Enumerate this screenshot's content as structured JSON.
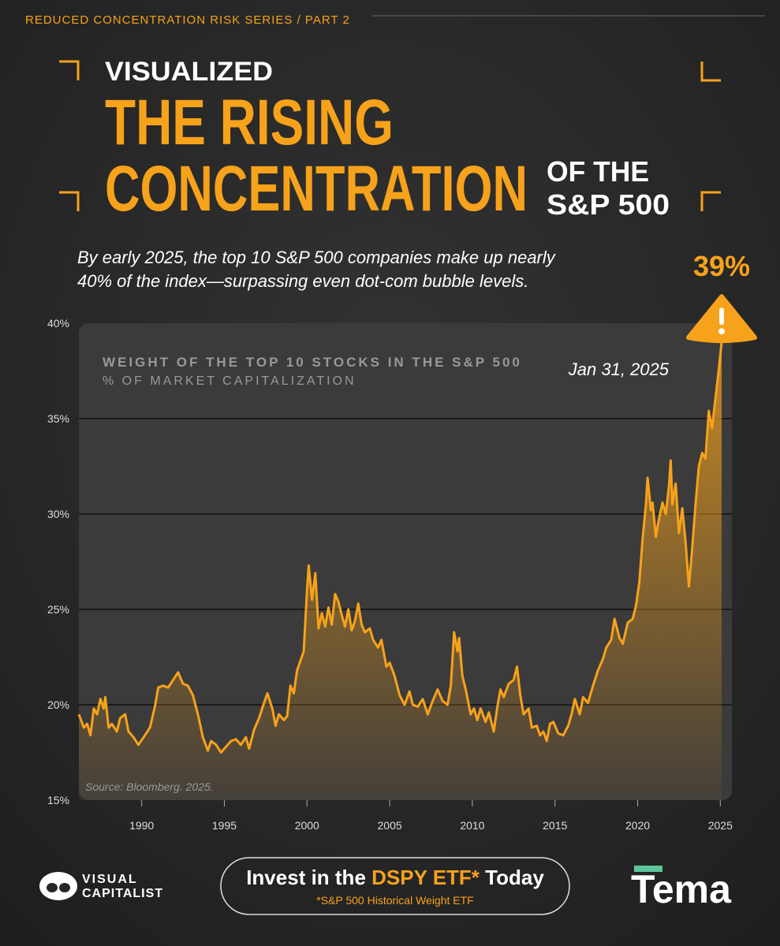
{
  "header": {
    "series_label": "REDUCED CONCENTRATION RISK SERIES / PART 2",
    "kicker": "VISUALIZED",
    "title_line1": "THE RISING",
    "title_line2": "CONCENTRATION",
    "title_side1": "OF THE",
    "title_side2": "S&P 500",
    "subtitle_lines": [
      "By early 2025, the top 10 S&P 500 companies make up nearly",
      "40% of the index—surpassing even dot-com bubble levels."
    ]
  },
  "chart_data": {
    "type": "line",
    "title": "WEIGHT OF THE TOP 10 STOCKS IN THE S&P 500",
    "subtitle": "% OF MARKET CAPITALIZATION",
    "source": "Source: Bloomberg. 2025.",
    "color": "#f7a21b",
    "grid": true,
    "xlim": [
      1986.2,
      2025.7
    ],
    "ylim": [
      15,
      40
    ],
    "xticks": [
      1990,
      1995,
      2000,
      2005,
      2010,
      2015,
      2020,
      2025
    ],
    "yticks": [
      {
        "value": 15,
        "label": "15%"
      },
      {
        "value": 20,
        "label": "20%"
      },
      {
        "value": 25,
        "label": "25%"
      },
      {
        "value": 30,
        "label": "30%"
      },
      {
        "value": 35,
        "label": "35%"
      },
      {
        "value": 40,
        "label": "40%"
      }
    ],
    "x": [
      1986.2,
      1986.5,
      1986.7,
      1986.9,
      1987.1,
      1987.3,
      1987.5,
      1987.7,
      1987.8,
      1988.0,
      1988.2,
      1988.5,
      1988.7,
      1989.0,
      1989.2,
      1989.5,
      1989.8,
      1990.2,
      1990.5,
      1990.8,
      1991.0,
      1991.3,
      1991.6,
      1991.9,
      1992.2,
      1992.5,
      1992.8,
      1993.1,
      1993.4,
      1993.7,
      1994.0,
      1994.2,
      1994.5,
      1994.8,
      1995.1,
      1995.4,
      1995.7,
      1996.0,
      1996.3,
      1996.5,
      1996.8,
      1997.1,
      1997.4,
      1997.6,
      1997.9,
      1998.1,
      1998.3,
      1998.6,
      1998.8,
      1999.0,
      1999.2,
      1999.4,
      1999.6,
      1999.8,
      2000.0,
      2000.1,
      2000.3,
      2000.5,
      2000.7,
      2000.9,
      2001.1,
      2001.3,
      2001.5,
      2001.7,
      2001.9,
      2002.1,
      2002.3,
      2002.5,
      2002.7,
      2002.9,
      2003.1,
      2003.3,
      2003.5,
      2003.8,
      2004.0,
      2004.3,
      2004.5,
      2004.8,
      2005.0,
      2005.3,
      2005.6,
      2005.9,
      2006.2,
      2006.4,
      2006.7,
      2007.0,
      2007.3,
      2007.6,
      2007.9,
      2008.2,
      2008.5,
      2008.7,
      2008.9,
      2009.1,
      2009.2,
      2009.4,
      2009.6,
      2009.9,
      2010.1,
      2010.3,
      2010.5,
      2010.8,
      2011.0,
      2011.3,
      2011.5,
      2011.7,
      2011.9,
      2012.2,
      2012.5,
      2012.7,
      2012.9,
      2013.1,
      2013.4,
      2013.6,
      2013.9,
      2014.1,
      2014.3,
      2014.5,
      2014.7,
      2014.9,
      2015.2,
      2015.5,
      2015.8,
      2016.0,
      2016.2,
      2016.5,
      2016.7,
      2017.0,
      2017.3,
      2017.6,
      2017.9,
      2018.1,
      2018.4,
      2018.6,
      2018.9,
      2019.1,
      2019.4,
      2019.7,
      2019.9,
      2020.1,
      2020.3,
      2020.5,
      2020.6,
      2020.8,
      2020.9,
      2021.1,
      2021.3,
      2021.5,
      2021.7,
      2021.9,
      2022.0,
      2022.1,
      2022.3,
      2022.5,
      2022.7,
      2022.9,
      2023.1,
      2023.3,
      2023.5,
      2023.7,
      2023.9,
      2024.1,
      2024.3,
      2024.5,
      2024.7,
      2024.9,
      2025.08
    ],
    "values": [
      19.5,
      18.8,
      19.0,
      18.4,
      19.8,
      19.5,
      20.3,
      19.8,
      20.4,
      18.8,
      19.0,
      18.6,
      19.3,
      19.5,
      18.6,
      18.3,
      17.9,
      18.4,
      18.8,
      19.9,
      20.9,
      21.0,
      20.9,
      21.3,
      21.7,
      21.1,
      21.0,
      20.5,
      19.5,
      18.3,
      17.6,
      18.1,
      17.9,
      17.5,
      17.8,
      18.1,
      18.2,
      17.9,
      18.3,
      17.7,
      18.7,
      19.3,
      20.1,
      20.6,
      19.8,
      18.9,
      19.5,
      19.2,
      19.4,
      21.0,
      20.6,
      21.8,
      22.3,
      22.8,
      26.0,
      27.3,
      25.5,
      26.9,
      24.0,
      24.8,
      24.1,
      25.1,
      24.2,
      25.8,
      25.4,
      24.7,
      24.1,
      25.0,
      23.9,
      24.4,
      25.3,
      24.2,
      23.8,
      24.0,
      23.4,
      23.0,
      23.4,
      22.0,
      22.2,
      21.5,
      20.5,
      20.0,
      20.7,
      20.0,
      19.9,
      20.3,
      19.5,
      20.2,
      20.8,
      20.2,
      20.0,
      21.0,
      23.8,
      22.8,
      23.5,
      21.5,
      20.8,
      19.5,
      19.8,
      19.2,
      19.8,
      19.1,
      19.6,
      18.6,
      19.8,
      20.8,
      20.4,
      21.1,
      21.3,
      22.0,
      20.5,
      19.5,
      19.8,
      18.8,
      18.9,
      18.4,
      18.6,
      18.1,
      19.0,
      19.1,
      18.5,
      18.4,
      18.9,
      19.5,
      20.3,
      19.5,
      20.4,
      20.1,
      21.0,
      21.8,
      22.4,
      23.0,
      23.4,
      24.5,
      23.5,
      23.2,
      24.3,
      24.5,
      25.2,
      26.4,
      28.7,
      30.5,
      31.9,
      30.2,
      30.6,
      28.8,
      29.8,
      30.6,
      30.0,
      31.5,
      32.8,
      30.5,
      31.6,
      29.0,
      30.3,
      28.5,
      26.2,
      28.2,
      30.5,
      32.5,
      33.2,
      32.9,
      35.4,
      34.5,
      36.0,
      37.5,
      39.0
    ],
    "annotations": [
      {
        "x": 2025.08,
        "value": 39,
        "label": "39%",
        "date_label": "Jan 31, 2025"
      }
    ]
  },
  "footer": {
    "brand_line1": "VISUAL",
    "brand_line2": "CAPITALIST",
    "cta_prefix": "Invest in the",
    "cta_highlight": "DSPY ETF*",
    "cta_suffix": "Today",
    "cta_note": "*S&P 500 Historical Weight ETF",
    "partner": "Tema"
  }
}
